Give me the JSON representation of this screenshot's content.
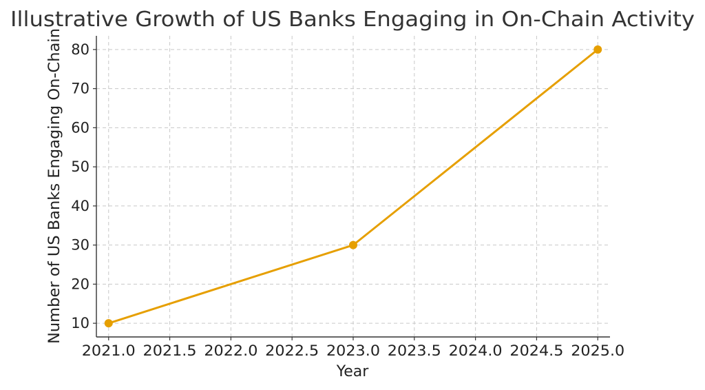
{
  "chart_data": {
    "type": "line",
    "title": "Illustrative Growth of US Banks Engaging in On-Chain Activity",
    "xlabel": "Year",
    "ylabel": "Number of US Banks Engaging On-Chain",
    "xlim": [
      2020.9,
      2025.1
    ],
    "ylim": [
      6.5,
      83.5
    ],
    "x_ticks": [
      2021.0,
      2021.5,
      2022.0,
      2022.5,
      2023.0,
      2023.5,
      2024.0,
      2024.5,
      2025.0
    ],
    "x_tick_labels": [
      "2021.0",
      "2021.5",
      "2022.0",
      "2022.5",
      "2023.0",
      "2023.5",
      "2024.0",
      "2024.5",
      "2025.0"
    ],
    "y_ticks": [
      10,
      20,
      30,
      40,
      50,
      60,
      70,
      80
    ],
    "y_tick_labels": [
      "10",
      "20",
      "30",
      "40",
      "50",
      "60",
      "70",
      "80"
    ],
    "grid": true,
    "legend": "none",
    "series": [
      {
        "color": "#e69f00",
        "x": [
          2021,
          2023,
          2025
        ],
        "y": [
          10,
          30,
          80
        ]
      }
    ]
  }
}
